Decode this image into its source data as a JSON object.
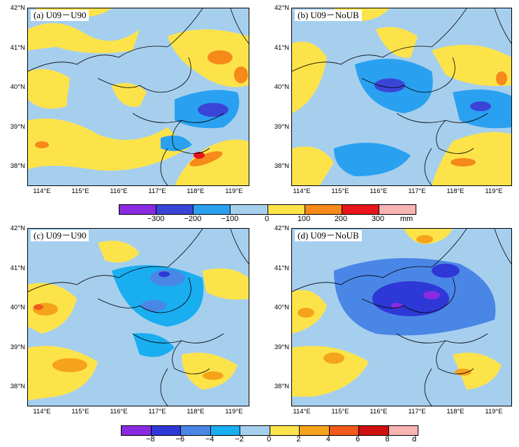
{
  "panels": [
    {
      "label": "(a)  U09－U90",
      "colorbar": "precip"
    },
    {
      "label": "(b)  U09－NoUB",
      "colorbar": "precip"
    },
    {
      "label": "(c)  U09－U90",
      "colorbar": "days"
    },
    {
      "label": "(d)  U09－NoUB",
      "colorbar": "days"
    }
  ],
  "lat_ticks": [
    "42°N",
    "41°N",
    "40°N",
    "39°N",
    "38°N"
  ],
  "lon_ticks": [
    "114°E",
    "115°E",
    "116°E",
    "117°E",
    "118°E",
    "119°E"
  ],
  "colorbar_precip": {
    "colors": [
      "#8a2be2",
      "#3a45d8",
      "#2aa1f0",
      "#a6cfee",
      "#fde34a",
      "#f5891a",
      "#e8151a",
      "#f8b3b3"
    ],
    "labels": [
      "−300",
      "−200",
      "−100",
      "0",
      "100",
      "200",
      "300"
    ],
    "unit": "mm"
  },
  "colorbar_days": {
    "colors": [
      "#8a2be2",
      "#2e38d6",
      "#4a86e6",
      "#19aef0",
      "#a6cfee",
      "#fde34a",
      "#f5a31a",
      "#f05a1a",
      "#cf0f10",
      "#f8b3b3"
    ],
    "labels": [
      "−8",
      "−6",
      "−4",
      "−2",
      "0",
      "2",
      "4",
      "6",
      "8"
    ],
    "unit": "d"
  }
}
